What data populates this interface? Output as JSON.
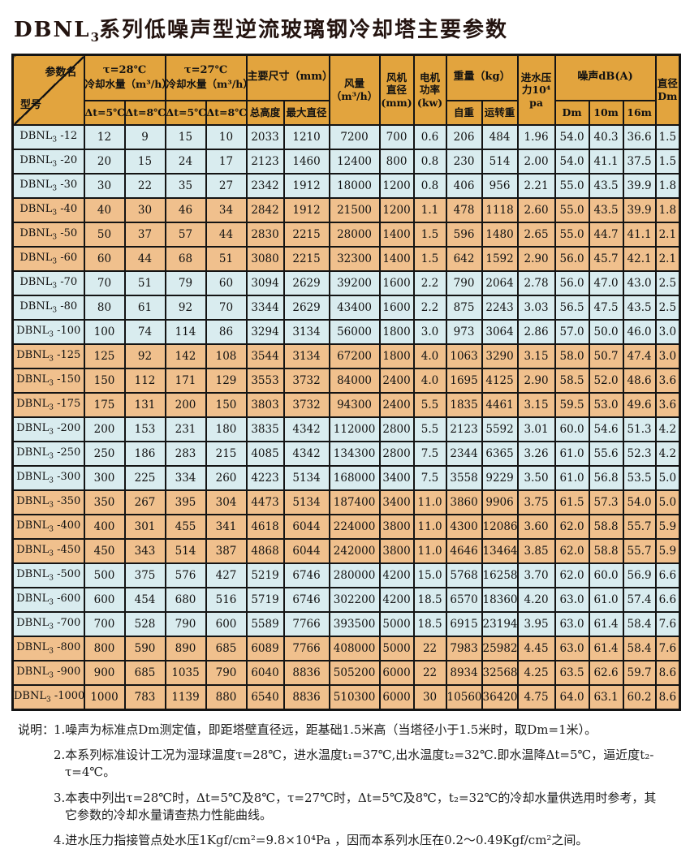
{
  "title": {
    "prefix": "DBNL",
    "sub": "3",
    "rest": "系列低噪声型逆流玻璃钢冷却塔主要参数"
  },
  "table": {
    "header": {
      "corner_top": "参数名",
      "corner_bottom": "型号",
      "t28_line1": "τ=28℃",
      "t28_line2": "冷却水量（m³/h）",
      "t27_line1": "τ=27℃",
      "t27_line2": "冷却水量（m³/h）",
      "dt5": "Δt=5℃",
      "dt8": "Δt=8℃",
      "size": "主要尺寸（mm）",
      "size_sub1": "总高度",
      "size_sub2": "最大直径",
      "airflow": "风量 （m³/h）",
      "fan_dia": "风机 直径 (mm)",
      "motor": "电机 功率 (kw)",
      "weight": "重量（kg）",
      "weight_sub1": "自重",
      "weight_sub2": "运转重",
      "pressure": "进水压力10⁴ pa",
      "noise": "噪声dB(A)",
      "noise_sub1": "Dm",
      "noise_sub2": "10m",
      "noise_sub3": "16m",
      "dia": "直径 Dm"
    },
    "rows": [
      {
        "model": [
          "DBNL",
          "3",
          "-12"
        ],
        "values": [
          "12",
          "9",
          "15",
          "10",
          "2033",
          "1210",
          "7200",
          "700",
          "0.6",
          "206",
          "484",
          "1.96",
          "54.0",
          "40.3",
          "36.6",
          "1.5"
        ]
      },
      {
        "model": [
          "DBNL",
          "3",
          "-20"
        ],
        "values": [
          "20",
          "15",
          "24",
          "17",
          "2123",
          "1460",
          "12400",
          "800",
          "0.8",
          "230",
          "514",
          "2.00",
          "54.0",
          "41.1",
          "37.5",
          "1.5"
        ]
      },
      {
        "model": [
          "DBNL",
          "3",
          "-30"
        ],
        "values": [
          "30",
          "22",
          "35",
          "27",
          "2342",
          "1912",
          "18000",
          "1200",
          "0.8",
          "406",
          "956",
          "2.21",
          "55.0",
          "43.5",
          "39.9",
          "1.8"
        ]
      },
      {
        "model": [
          "DBNL",
          "3",
          "-40"
        ],
        "values": [
          "40",
          "30",
          "46",
          "34",
          "2842",
          "1912",
          "21500",
          "1200",
          "1.1",
          "478",
          "1118",
          "2.60",
          "55.0",
          "43.5",
          "39.9",
          "1.8"
        ]
      },
      {
        "model": [
          "DBNL",
          "3",
          "-50"
        ],
        "values": [
          "50",
          "37",
          "57",
          "44",
          "2830",
          "2215",
          "28000",
          "1400",
          "1.5",
          "596",
          "1480",
          "2.65",
          "55.0",
          "44.7",
          "41.1",
          "2.1"
        ]
      },
      {
        "model": [
          "DBNL",
          "3",
          "-60"
        ],
        "values": [
          "60",
          "44",
          "68",
          "51",
          "3080",
          "2215",
          "32300",
          "1400",
          "1.5",
          "642",
          "1592",
          "2.90",
          "56.0",
          "45.7",
          "42.1",
          "2.1"
        ]
      },
      {
        "model": [
          "DBNL",
          "3",
          "-70"
        ],
        "values": [
          "70",
          "51",
          "79",
          "60",
          "3094",
          "2629",
          "39200",
          "1600",
          "2.2",
          "790",
          "2064",
          "2.78",
          "56.0",
          "47.0",
          "43.0",
          "2.5"
        ]
      },
      {
        "model": [
          "DBNL",
          "3",
          "-80"
        ],
        "values": [
          "80",
          "61",
          "92",
          "70",
          "3344",
          "2629",
          "43400",
          "1600",
          "2.2",
          "875",
          "2243",
          "3.03",
          "56.5",
          "47.5",
          "43.5",
          "2.5"
        ]
      },
      {
        "model": [
          "DBNL",
          "3",
          "-100"
        ],
        "values": [
          "100",
          "74",
          "114",
          "86",
          "3294",
          "3134",
          "56000",
          "1800",
          "3.0",
          "973",
          "3064",
          "2.86",
          "57.0",
          "50.0",
          "46.0",
          "3.0"
        ]
      },
      {
        "model": [
          "DBNL",
          "3",
          "-125"
        ],
        "values": [
          "125",
          "92",
          "142",
          "108",
          "3544",
          "3134",
          "67200",
          "1800",
          "4.0",
          "1063",
          "3290",
          "3.15",
          "58.0",
          "50.7",
          "47.4",
          "3.0"
        ]
      },
      {
        "model": [
          "DBNL",
          "3",
          "-150"
        ],
        "values": [
          "150",
          "112",
          "171",
          "129",
          "3553",
          "3732",
          "84000",
          "2400",
          "4.0",
          "1695",
          "4125",
          "2.90",
          "58.5",
          "52.0",
          "48.6",
          "3.6"
        ]
      },
      {
        "model": [
          "DBNL",
          "3",
          "-175"
        ],
        "values": [
          "175",
          "131",
          "200",
          "150",
          "3803",
          "3732",
          "94300",
          "2400",
          "5.5",
          "1835",
          "4461",
          "3.15",
          "59.5",
          "53.0",
          "49.6",
          "3.6"
        ]
      },
      {
        "model": [
          "DBNL",
          "3",
          "-200"
        ],
        "values": [
          "200",
          "153",
          "231",
          "180",
          "3835",
          "4342",
          "112000",
          "2800",
          "5.5",
          "2123",
          "5592",
          "3.01",
          "60.0",
          "54.6",
          "51.3",
          "4.2"
        ]
      },
      {
        "model": [
          "DBNL",
          "3",
          "-250"
        ],
        "values": [
          "250",
          "186",
          "283",
          "215",
          "4085",
          "4342",
          "134300",
          "2800",
          "7.5",
          "2344",
          "6365",
          "3.26",
          "61.0",
          "55.6",
          "52.3",
          "4.2"
        ]
      },
      {
        "model": [
          "DBNL",
          "3",
          "-300"
        ],
        "values": [
          "300",
          "225",
          "334",
          "260",
          "4223",
          "5134",
          "168000",
          "3400",
          "7.5",
          "3558",
          "9229",
          "3.50",
          "61.0",
          "56.8",
          "53.5",
          "5.0"
        ]
      },
      {
        "model": [
          "DBNL",
          "3",
          "-350"
        ],
        "values": [
          "350",
          "267",
          "395",
          "304",
          "4473",
          "5134",
          "187400",
          "3400",
          "11.0",
          "3860",
          "9906",
          "3.75",
          "61.5",
          "57.3",
          "54.0",
          "5.0"
        ]
      },
      {
        "model": [
          "DBNL",
          "3",
          "-400"
        ],
        "values": [
          "400",
          "301",
          "455",
          "341",
          "4618",
          "6044",
          "224000",
          "3800",
          "11.0",
          "4300",
          "12086",
          "3.60",
          "62.0",
          "58.8",
          "55.7",
          "5.9"
        ]
      },
      {
        "model": [
          "DBNL",
          "3",
          "-450"
        ],
        "values": [
          "450",
          "343",
          "514",
          "387",
          "4868",
          "6044",
          "242000",
          "3800",
          "11.0",
          "4646",
          "13464",
          "3.85",
          "62.0",
          "58.8",
          "55.7",
          "5.9"
        ]
      },
      {
        "model": [
          "DBNL",
          "3",
          "-500"
        ],
        "values": [
          "500",
          "375",
          "576",
          "427",
          "5219",
          "6746",
          "280000",
          "4200",
          "15.0",
          "5768",
          "16258",
          "3.70",
          "62.0",
          "60.0",
          "56.9",
          "6.6"
        ]
      },
      {
        "model": [
          "DBNL",
          "3",
          "-600"
        ],
        "values": [
          "600",
          "454",
          "680",
          "516",
          "5719",
          "6746",
          "302200",
          "4200",
          "18.5",
          "6570",
          "18360",
          "4.20",
          "63.0",
          "61.0",
          "57.4",
          "6.6"
        ]
      },
      {
        "model": [
          "DBNL",
          "3",
          "-700"
        ],
        "values": [
          "700",
          "528",
          "790",
          "600",
          "5589",
          "7766",
          "393500",
          "5000",
          "18.5",
          "6915",
          "23194",
          "3.95",
          "63.0",
          "61.4",
          "58.4",
          "7.6"
        ]
      },
      {
        "model": [
          "DBNL",
          "3",
          "-800"
        ],
        "values": [
          "800",
          "590",
          "890",
          "685",
          "6089",
          "7766",
          "408000",
          "5000",
          "22",
          "7983",
          "25982",
          "4.45",
          "63.0",
          "61.4",
          "58.4",
          "7.6"
        ]
      },
      {
        "model": [
          "DBNL",
          "3",
          "-900"
        ],
        "values": [
          "900",
          "685",
          "1035",
          "790",
          "6040",
          "8836",
          "505200",
          "6000",
          "22",
          "8934",
          "32568",
          "4.25",
          "63.5",
          "62.6",
          "59.7",
          "8.6"
        ]
      },
      {
        "model": [
          "DBNL",
          "3",
          "-1000"
        ],
        "values": [
          "1000",
          "783",
          "1139",
          "880",
          "6540",
          "8836",
          "510300",
          "6000",
          "30",
          "10560",
          "36420",
          "4.75",
          "64.0",
          "63.1",
          "60.2",
          "8.6"
        ]
      }
    ]
  },
  "notes": {
    "label": "说明：",
    "items": [
      "1.噪声为标准点Dm测定值，即距塔壁直径远，距基础1.5米高（当塔径小于1.5米时，取Dm=1米）。",
      "2.本系列标准设计工况为湿球温度τ=28℃，进水温度t₁=37℃,出水温度t₂=32℃.即水温降Δt=5℃，逼近度t₂-τ=4℃。",
      "3.本表中列出τ=28℃时，Δt=5℃及8℃，τ=27℃时，Δt=5℃及8℃，t₂=32℃的冷却水量供选用时参考，其它参数的冷却水量请查热力性能曲线。",
      "4.进水压力指接管点处水压1Kgf/cm²=9.8×10⁴Pa ，因而本系列水压在0.2～0.49Kgf/cm²之间。"
    ]
  },
  "colors": {
    "header_bg": "#E2A43E",
    "band_blue": "#D9ECEF",
    "band_orange": "#F0C08D",
    "border": "#141414"
  }
}
